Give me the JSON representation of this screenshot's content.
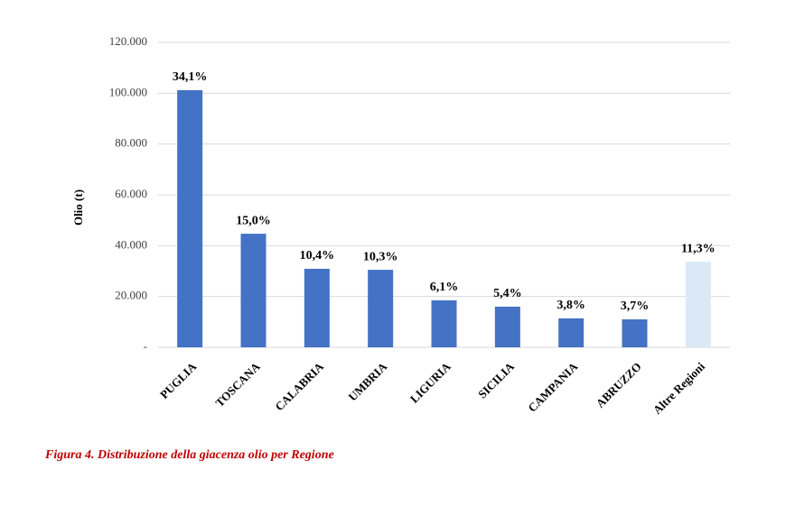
{
  "chart_data": {
    "type": "bar",
    "y_label": "Olio (t)",
    "caption": "Figura 4. Distribuzione della giacenza olio per Regione",
    "categories": [
      "PUGLIA",
      "TOSCANA",
      "CALABRIA",
      "UMBRIA",
      "LIGURIA",
      "SICILIA",
      "CAMPANIA",
      "ABRUZZO",
      "Altre Regioni"
    ],
    "values": [
      101200,
      44700,
      30900,
      30500,
      18500,
      16000,
      11400,
      11000,
      33700
    ],
    "percent_labels": [
      "34,1%",
      "15,0%",
      "10,4%",
      "10,3%",
      "6,1%",
      "5,4%",
      "3,8%",
      "3,7%",
      "11,3%"
    ],
    "colors": [
      "#4472c4",
      "#4472c4",
      "#4472c4",
      "#4472c4",
      "#4472c4",
      "#4472c4",
      "#4472c4",
      "#4472c4",
      "#dbe9f7"
    ],
    "ylim": [
      0,
      120000
    ],
    "yticks": [
      {
        "value": 0,
        "label": "-"
      },
      {
        "value": 20000,
        "label": "20.000"
      },
      {
        "value": 40000,
        "label": "40.000"
      },
      {
        "value": 60000,
        "label": "60.000"
      },
      {
        "value": 80000,
        "label": "80.000"
      },
      {
        "value": 100000,
        "label": "100.000"
      },
      {
        "value": 120000,
        "label": "120.000"
      }
    ],
    "grid": true
  }
}
